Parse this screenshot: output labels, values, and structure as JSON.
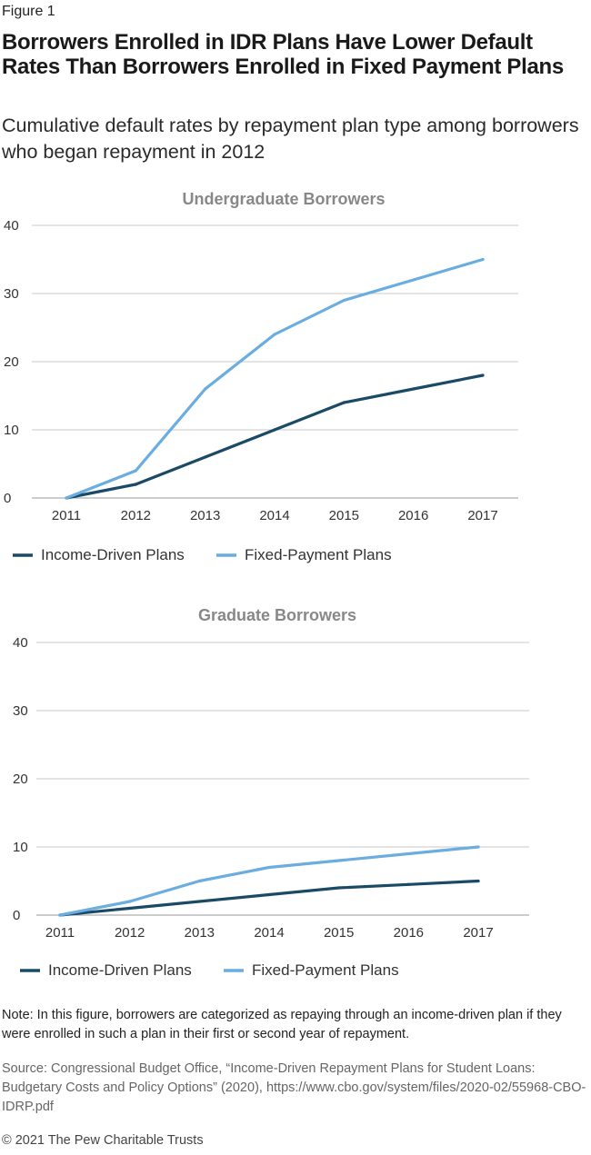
{
  "figure_label": "Figure 1",
  "title": "Borrowers Enrolled in IDR Plans Have Lower Default Rates Than Borrowers Enrolled in Fixed Payment Plans",
  "subtitle": "Cumulative default rates by repayment plan type among borrowers who began repayment in 2012",
  "colors": {
    "income_driven": "#1b4a66",
    "fixed_payment": "#6aade0",
    "grid": "#c8c8c8",
    "panel_title": "#888888"
  },
  "chart_data": [
    {
      "type": "line",
      "title": "Undergraduate Borrowers",
      "x": [
        "2011",
        "2012",
        "2013",
        "2014",
        "2015",
        "2016",
        "2017"
      ],
      "ylim": [
        0,
        40
      ],
      "yticks": [
        "0",
        "10",
        "20",
        "30",
        "40"
      ],
      "grid": true,
      "legend_position": "bottom-left",
      "series": [
        {
          "name": "Income-Driven Plans",
          "values": [
            0,
            2,
            6,
            10,
            14,
            16,
            18
          ]
        },
        {
          "name": "Fixed-Payment Plans",
          "values": [
            0,
            4,
            16,
            24,
            29,
            32,
            35
          ]
        }
      ]
    },
    {
      "type": "line",
      "title": "Graduate Borrowers",
      "x": [
        "2011",
        "2012",
        "2013",
        "2014",
        "2015",
        "2016",
        "2017"
      ],
      "ylim": [
        0,
        40
      ],
      "yticks": [
        "0",
        "10",
        "20",
        "30",
        "40"
      ],
      "grid": true,
      "legend_position": "bottom-left",
      "series": [
        {
          "name": "Income-Driven Plans",
          "values": [
            0,
            1,
            2,
            3,
            4,
            4.5,
            5
          ]
        },
        {
          "name": "Fixed-Payment Plans",
          "values": [
            0,
            2,
            5,
            7,
            8,
            9,
            10
          ]
        }
      ]
    }
  ],
  "note": "Note: In this figure, borrowers are categorized as repaying through an income-driven plan if they were enrolled in such a plan in their first or second year of repayment.",
  "source": "Source: Congressional Budget Office, “Income-Driven Repayment Plans for Student Loans: Budgetary Costs and Policy Options” (2020), https://www.cbo.gov/system/files/2020-02/55968-CBO-IDRP.pdf",
  "copyright": "© 2021 The Pew Charitable Trusts"
}
